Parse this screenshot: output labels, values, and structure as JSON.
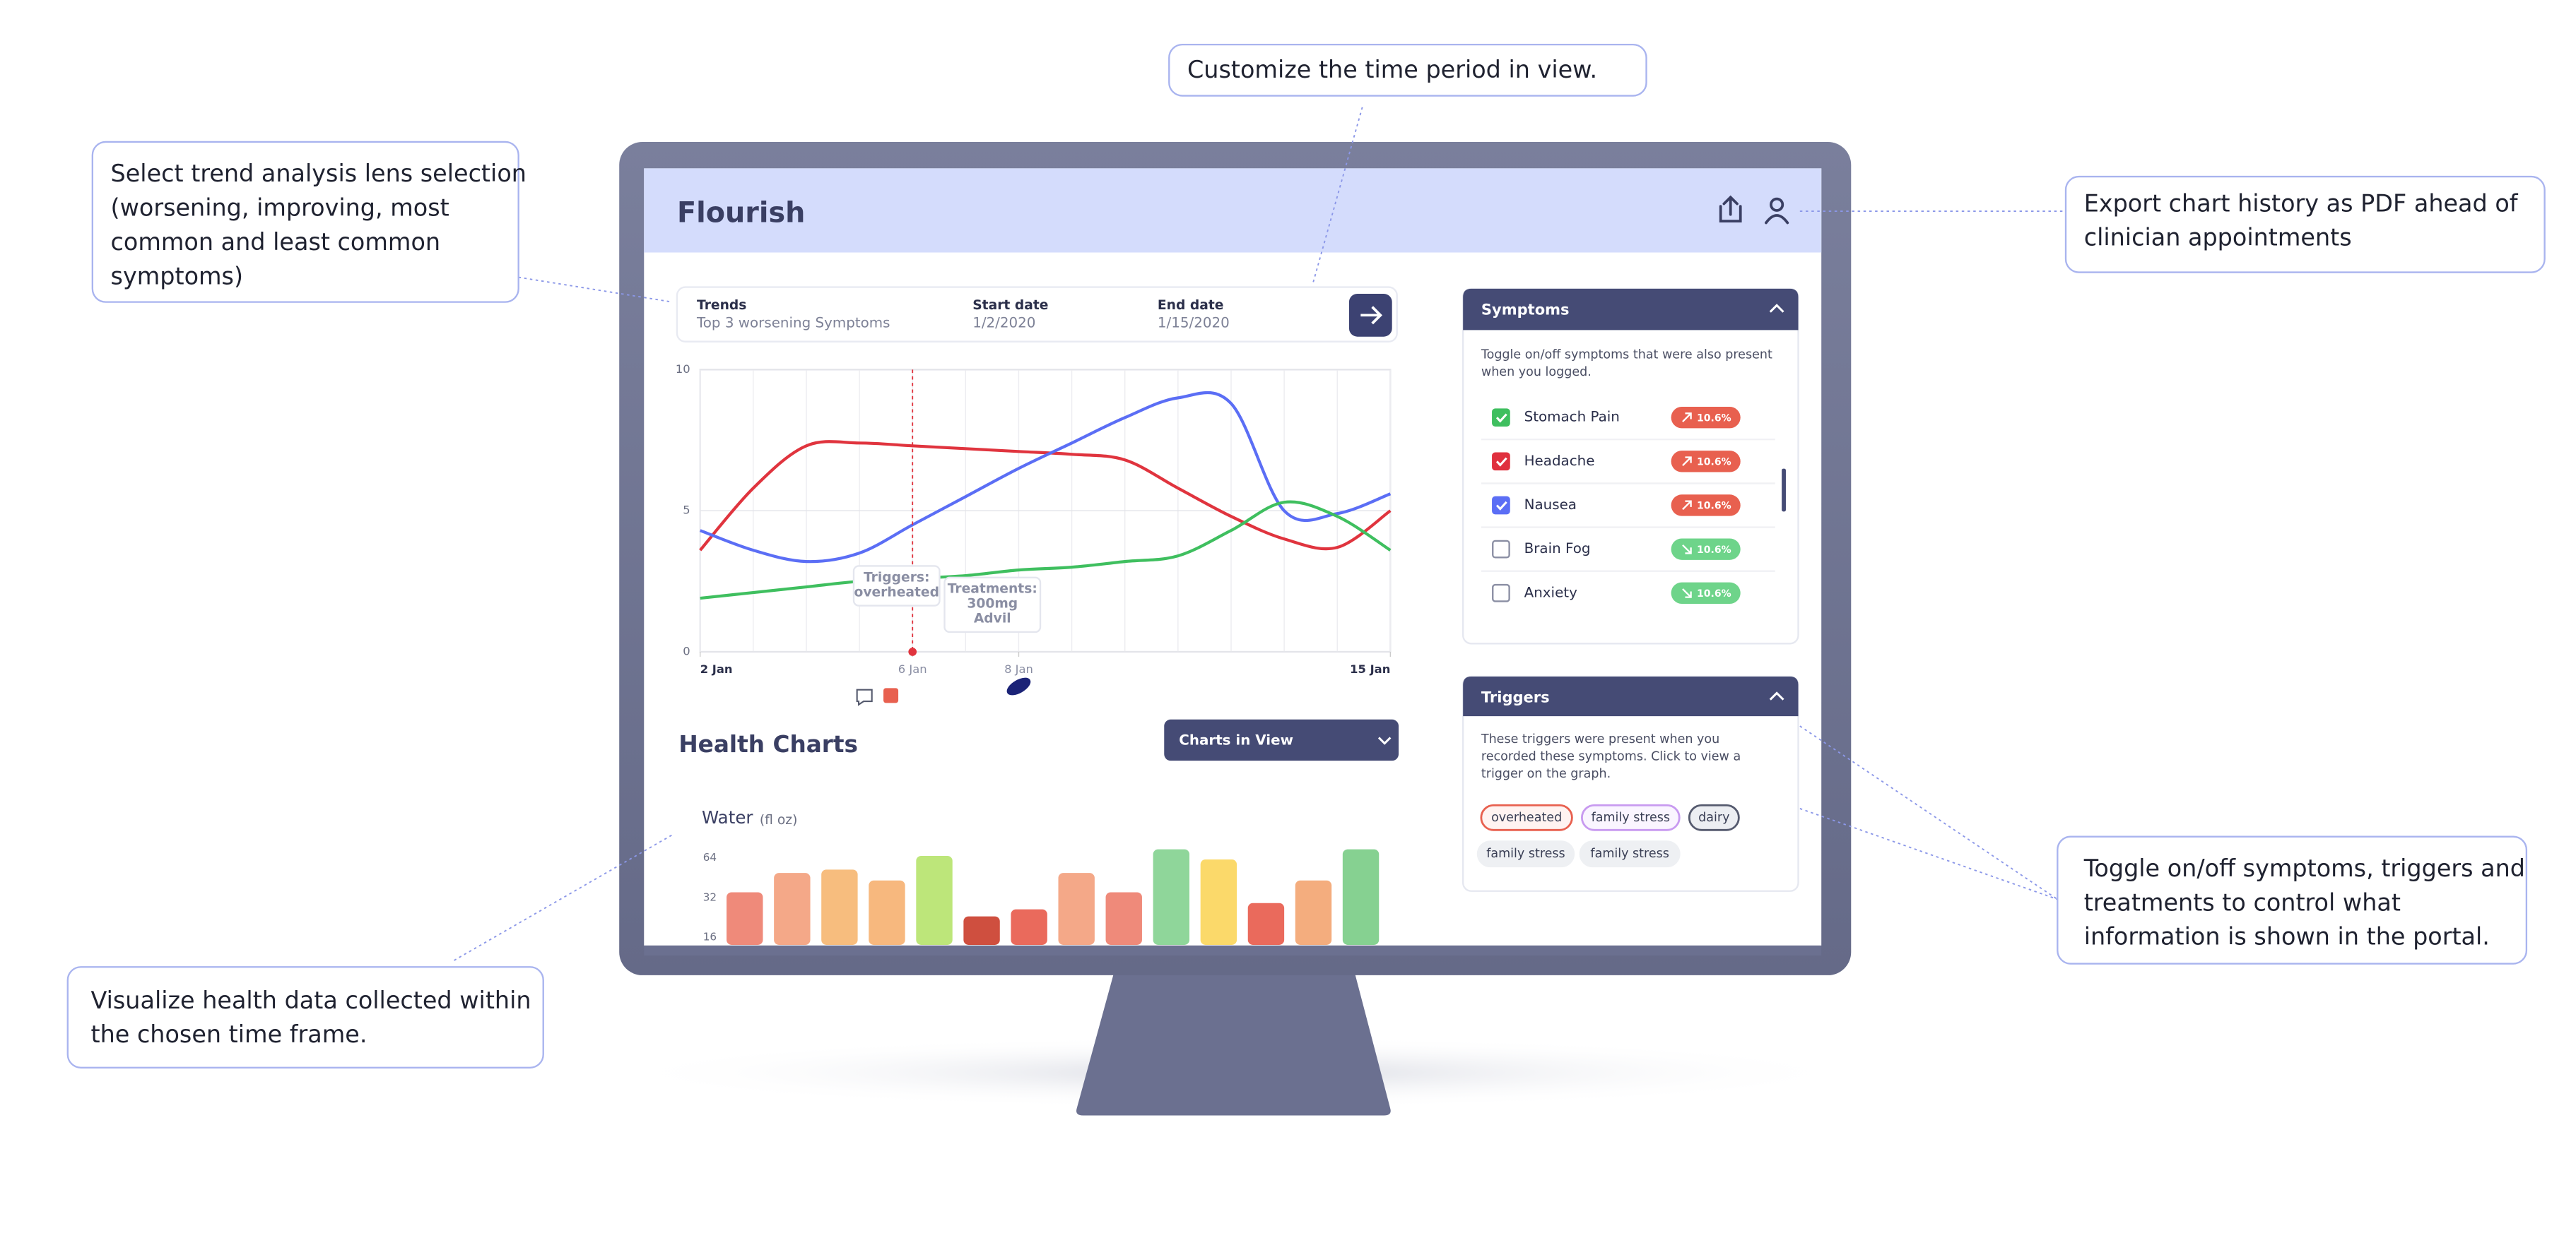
{
  "annotations": [
    {
      "lines": [
        "Select trend analysis lens selection",
        "(worsening, improving, most",
        "common and least common",
        "symptoms)"
      ]
    },
    {
      "lines": [
        "Customize the time period in view."
      ]
    },
    {
      "lines": [
        "Export chart history as PDF ahead of",
        "clinician  appointments"
      ]
    },
    {
      "lines": [
        "Visualize health data collected within",
        "the chosen time frame."
      ]
    },
    {
      "lines": [
        "Toggle on/off symptoms, triggers and",
        "treatments to control what",
        "information is shown in the portal."
      ]
    }
  ],
  "app": {
    "title": "Flourish",
    "trends": {
      "label": "Trends",
      "value": "Top 3 worsening Symptoms"
    },
    "start": {
      "label": "Start date",
      "value": "1/2/2020"
    },
    "end": {
      "label": "End date",
      "value": "1/15/2020"
    }
  },
  "trend_chart": {
    "type": "line",
    "x": [
      2,
      3,
      4,
      5,
      6,
      7,
      8,
      9,
      10,
      11,
      12,
      13,
      14,
      15
    ],
    "xlim": [
      2,
      15
    ],
    "xticks": [
      {
        "value": 2,
        "label": "2 Jan"
      },
      {
        "value": 6,
        "label": "6 Jan"
      },
      {
        "value": 8,
        "label": "8 Jan"
      },
      {
        "value": 15,
        "label": "15 Jan"
      }
    ],
    "ylim": [
      0,
      10
    ],
    "yticks": [
      0,
      5,
      10
    ],
    "grid": true,
    "series": [
      {
        "color": "#e0343e",
        "values": [
          3.6,
          5.8,
          7.3,
          7.4,
          7.3,
          7.2,
          7.1,
          7.0,
          6.8,
          5.8,
          4.8,
          4.0,
          3.7,
          5.0
        ]
      },
      {
        "color": "#5b6ef5",
        "values": [
          4.3,
          3.6,
          3.2,
          3.5,
          4.5,
          5.5,
          6.5,
          7.4,
          8.3,
          9.0,
          8.8,
          5.0,
          4.9,
          5.6
        ]
      },
      {
        "color": "#3fbf5f",
        "values": [
          1.9,
          2.1,
          2.3,
          2.5,
          2.6,
          2.7,
          2.9,
          3.0,
          3.2,
          3.4,
          4.3,
          5.3,
          4.8,
          3.6
        ]
      }
    ],
    "trigger_note": {
      "lines": [
        "Triggers:",
        "overheated"
      ]
    },
    "treatment_note": {
      "lines": [
        "Treatments:",
        "300mg",
        "Advil"
      ]
    }
  },
  "symptoms": {
    "title": "Symptoms",
    "description": [
      "Toggle on/off symptoms that were also present",
      "when you logged."
    ],
    "items": [
      {
        "name": "Stomach Pain",
        "change": "10.6%",
        "checked": true,
        "color": "#3fbf5f",
        "trend": "up"
      },
      {
        "name": "Headache",
        "change": "10.6%",
        "checked": true,
        "color": "#e0303e",
        "trend": "up"
      },
      {
        "name": "Nausea",
        "change": "10.6%",
        "checked": true,
        "color": "#5b6ef5",
        "trend": "up"
      },
      {
        "name": "Brain Fog",
        "change": "10.6%",
        "checked": false,
        "color": "#8a8ea3",
        "trend": "down"
      },
      {
        "name": "Anxiety",
        "change": "10.6%",
        "checked": false,
        "color": "#8a8ea3",
        "trend": "down"
      }
    ]
  },
  "triggers": {
    "title": "Triggers",
    "description": [
      "These triggers were present when you",
      "recorded these symptoms. Click to view a",
      "trigger on the graph."
    ],
    "chips": [
      {
        "label": "overheated",
        "border": "#e8604f",
        "fill": "#fff3f1"
      },
      {
        "label": "family stress",
        "border": "#c89af0",
        "fill": "#faf5ff"
      },
      {
        "label": "dairy",
        "border": "#555a6e",
        "fill": "#eceef2"
      },
      {
        "label": "family stress",
        "border": "#eef0f3",
        "fill": "#eef0f3"
      },
      {
        "label": "family stress",
        "border": "#eef0f3",
        "fill": "#eef0f3"
      }
    ]
  },
  "health_charts": {
    "title": "Health Charts",
    "dropdown": "Charts in View",
    "water": {
      "type": "bar",
      "title": "Water",
      "unit": "(fl oz)",
      "log_scale": true,
      "ylim": [
        14,
        80
      ],
      "yticks": [
        64,
        32,
        16
      ],
      "values": [
        35,
        49,
        52,
        43,
        66,
        23,
        26,
        49,
        35,
        74,
        62,
        29,
        43,
        74
      ],
      "colors": [
        "#ef8a7a",
        "#f4a888",
        "#f7bd7e",
        "#f7b87e",
        "#bde67a",
        "#cf4f3f",
        "#ea6a5c",
        "#f4a888",
        "#ef8a7a",
        "#8fd69a",
        "#fbd96a",
        "#ea6a5c",
        "#f4ad7e",
        "#86d191"
      ]
    }
  }
}
